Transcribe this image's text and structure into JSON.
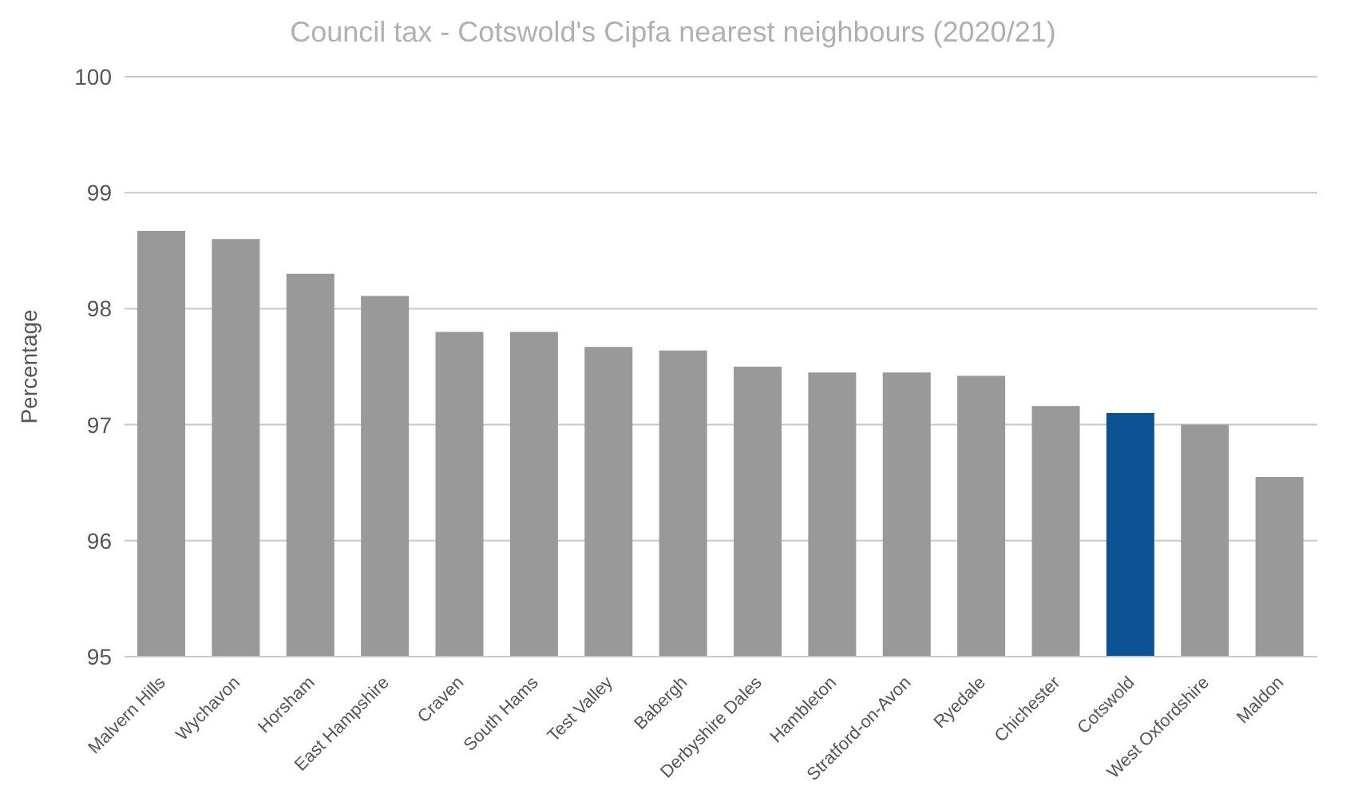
{
  "chart_data": {
    "type": "bar",
    "title": "Council tax - Cotswold's Cipfa nearest neighbours (2020/21)",
    "ylabel": "Percentage",
    "categories": [
      "Malvern Hills",
      "Wychavon",
      "Horsham",
      "East Hampshire",
      "Craven",
      "South Hams",
      "Test Valley",
      "Babergh",
      "Derbyshire Dales",
      "Hambleton",
      "Stratford-on-Avon",
      "Ryedale",
      "Chichester",
      "Cotswold",
      "West Oxfordshire",
      "Maldon"
    ],
    "values": [
      98.67,
      98.6,
      98.3,
      98.11,
      97.8,
      97.8,
      97.67,
      97.64,
      97.5,
      97.45,
      97.45,
      97.42,
      97.16,
      97.1,
      97.0,
      96.55
    ],
    "colors": [
      "#999999",
      "#999999",
      "#999999",
      "#999999",
      "#999999",
      "#999999",
      "#999999",
      "#999999",
      "#999999",
      "#999999",
      "#999999",
      "#999999",
      "#999999",
      "#0b5394",
      "#999999",
      "#999999"
    ],
    "ylim": [
      95,
      100
    ],
    "yticks": [
      95,
      96,
      97,
      98,
      99,
      100
    ],
    "grid": "y",
    "legend": false
  }
}
